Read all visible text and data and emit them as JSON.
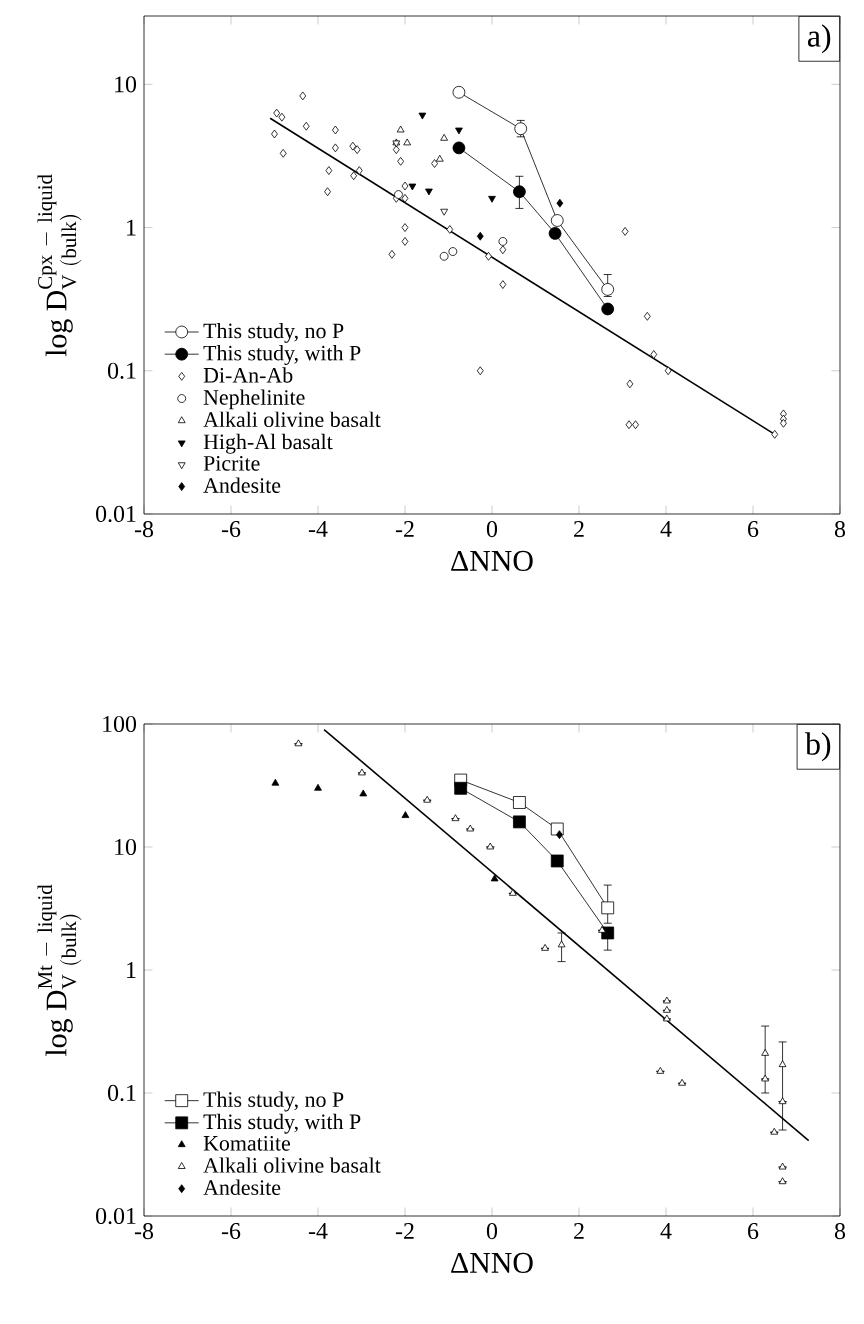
{
  "chart_data": [
    {
      "type": "scatter",
      "xlabel": "ΔNNO",
      "ylabel": "\\mathrm{log\\ D}^{\\mathrm{Cpx\\ -\\ liquid}}_{\\mathrm{V\\ (bulk)}}",
      "log": "y",
      "xlim": [
        -8,
        8
      ],
      "xticks": [
        -8,
        -6,
        -4,
        -2,
        0,
        2,
        4,
        6,
        8
      ],
      "ylim": [
        0.01,
        30
      ],
      "yticks": [
        0.01,
        0.1,
        1,
        10
      ],
      "legend": "bottom left",
      "annotations": [
        "a)"
      ],
      "series": [
        {
          "name": "This study, no P",
          "type": "line",
          "color": "#ffffff",
          "marker": "circle",
          "x": [
            -0.76,
            0.66,
            1.5,
            2.66
          ],
          "values": [
            8.8,
            4.9,
            1.12,
            0.37
          ],
          "errors": [
            null,
            [
              4.3,
              5.6
            ],
            null,
            [
              0.33,
              0.47
            ]
          ]
        },
        {
          "name": "This study, with P",
          "type": "line",
          "color": "#000000",
          "marker": "circle",
          "x": [
            -0.76,
            0.63,
            1.45,
            2.66
          ],
          "values": [
            3.6,
            1.78,
            0.91,
            0.27
          ],
          "errors": [
            null,
            [
              1.36,
              2.28
            ],
            null,
            null
          ]
        },
        {
          "name": "Di-An-Ab",
          "color": "#ffffff",
          "marker": "diamond",
          "x": [
            -4.35,
            -4.95,
            -4.83,
            -5.0,
            -4.27,
            -4.8,
            -3.6,
            -3.6,
            -3.75,
            -3.78,
            -3.2,
            -3.1,
            -3.18,
            -3.05,
            -2.2,
            -2.1,
            -2.2,
            -2.0,
            -2.0,
            -1.32,
            -2.0,
            -2.0,
            -2.3,
            -0.97,
            -0.08,
            0.25,
            -0.27,
            0.2,
            0.25,
            3.06,
            3.57,
            3.72,
            4.05,
            3.17,
            3.15,
            3.3,
            6.5,
            6.7,
            6.7,
            6.7
          ],
          "values": [
            8.3,
            6.3,
            5.9,
            4.5,
            5.1,
            3.3,
            4.8,
            3.6,
            2.5,
            1.78,
            3.7,
            3.5,
            2.3,
            2.5,
            3.5,
            2.9,
            1.6,
            1.95,
            1.6,
            2.8,
            1.0,
            0.8,
            0.65,
            0.97,
            0.63,
            0.4,
            0.1,
            null,
            0.7,
            0.94,
            0.24,
            0.13,
            0.1,
            0.081,
            0.042,
            0.042,
            0.036,
            0.05,
            0.046,
            0.043
          ]
        },
        {
          "name": "Nephelinite",
          "color": "#ffffff",
          "marker": "circle",
          "x": [
            -2.15,
            -1.1,
            -0.9,
            0.25
          ],
          "values": [
            1.7,
            0.63,
            0.68,
            0.8
          ]
        },
        {
          "name": "Alkali olivine basalt",
          "color": "#ffffff",
          "marker": "triangle",
          "x": [
            -2.1,
            -1.95,
            -2.2,
            -1.1,
            -1.2
          ],
          "values": [
            4.8,
            3.9,
            3.9,
            4.2,
            3.0
          ]
        },
        {
          "name": "High-Al basalt",
          "color": "#000000",
          "marker": "triangle_down",
          "x": [
            -1.6,
            -0.76,
            -1.83,
            -1.45,
            0.0
          ],
          "values": [
            6.1,
            4.8,
            1.95,
            1.8,
            1.6
          ]
        },
        {
          "name": "Picrite",
          "color": "#ffffff",
          "marker": "triangle_down",
          "x": [
            -1.1,
            -2.2
          ],
          "values": [
            1.3,
            3.9
          ]
        },
        {
          "name": "Andesite",
          "color": "#000000",
          "marker": "diamond",
          "x": [
            -0.27,
            1.56
          ],
          "values": [
            0.87,
            1.48
          ]
        },
        {
          "type": "line",
          "color": "#000000",
          "marker": "none",
          "x": [
            -5.1,
            6.5
          ],
          "values": [
            5.8,
            0.036
          ]
        }
      ]
    },
    {
      "type": "scatter",
      "xlabel": "ΔNNO",
      "ylabel": "\\mathrm{log\\ D}^{\\mathrm{Mt\\ -\\ liquid}}_{\\mathrm{V\\ (bulk)}}",
      "log": "y",
      "xlim": [
        -8,
        8
      ],
      "xticks": [
        -8,
        -6,
        -4,
        -2,
        0,
        2,
        4,
        6,
        8
      ],
      "ylim": [
        0.01,
        100
      ],
      "yticks": [
        0.01,
        0.1,
        1,
        10,
        100
      ],
      "legend": "bottom left",
      "annotations": [
        "b)"
      ],
      "series": [
        {
          "name": "This study, no P",
          "type": "line",
          "color": "#ffffff",
          "marker": "square",
          "x": [
            -0.72,
            0.63,
            1.5,
            2.66
          ],
          "values": [
            35,
            23,
            14,
            3.2
          ],
          "errors": [
            null,
            null,
            null,
            [
              2.4,
              4.9
            ]
          ]
        },
        {
          "name": "This study, with P",
          "type": "line",
          "color": "#000000",
          "marker": "square",
          "x": [
            -0.72,
            0.63,
            1.5,
            2.66
          ],
          "values": [
            30,
            16,
            7.7,
            2.0
          ],
          "errors": [
            null,
            null,
            null,
            [
              1.45,
              2.0
            ]
          ]
        },
        {
          "name": "Komatiite",
          "color": "#000000",
          "marker": "triangle",
          "x": [
            -4.98,
            -4.0,
            -2.96,
            -1.99,
            0.06
          ],
          "values": [
            33,
            30,
            27,
            18,
            5.5
          ]
        },
        {
          "name": "Alkali olivine basalt",
          "color": "#ffffff",
          "marker": "triangle",
          "x": [
            -4.45,
            -2.99,
            -1.49,
            -0.84,
            -0.5,
            -0.04,
            0.48,
            1.22,
            1.6,
            2.53,
            4.02,
            4.02,
            4.02,
            3.87,
            4.37,
            6.28,
            6.28,
            6.68,
            6.68,
            6.49,
            6.68,
            6.68
          ],
          "values": [
            69,
            40,
            24,
            17,
            14,
            10,
            4.2,
            1.5,
            1.6,
            2.1,
            0.56,
            0.47,
            0.4,
            0.15,
            0.12,
            0.21,
            0.13,
            0.17,
            0.085,
            0.048,
            0.025,
            0.019
          ],
          "errors": [
            null,
            null,
            null,
            null,
            null,
            null,
            null,
            null,
            [
              1.17,
              2.0
            ],
            null,
            null,
            null,
            null,
            null,
            null,
            [
              0.1,
              0.35
            ],
            null,
            [
              0.05,
              0.26
            ],
            null,
            null,
            null,
            null
          ]
        },
        {
          "name": "Andesite",
          "color": "#000000",
          "marker": "diamond",
          "x": [
            1.55
          ],
          "values": [
            12.6
          ]
        },
        {
          "type": "line",
          "color": "#000000",
          "marker": "none",
          "x": [
            -3.86,
            7.28
          ],
          "values": [
            90,
            0.041
          ]
        }
      ]
    }
  ]
}
